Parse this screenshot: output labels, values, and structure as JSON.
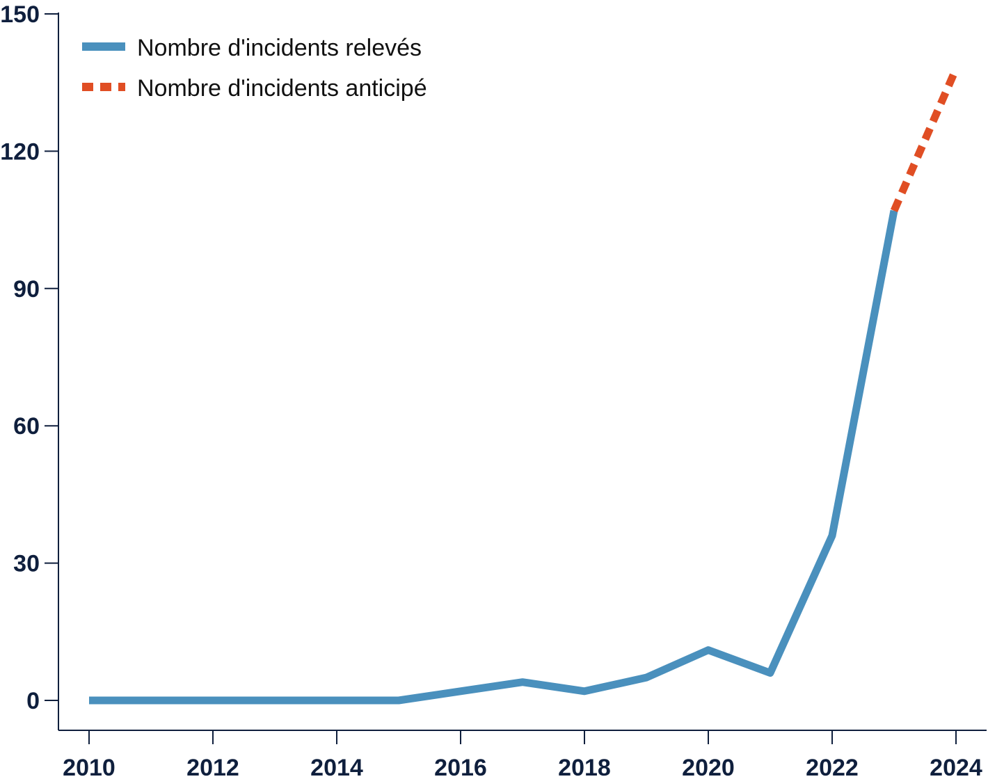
{
  "chart_data": {
    "type": "line",
    "title": "",
    "xlabel": "",
    "ylabel": "",
    "xlim": [
      2010,
      2024
    ],
    "ylim": [
      -6.5,
      150
    ],
    "x_ticks": [
      2010,
      2012,
      2014,
      2016,
      2018,
      2020,
      2022,
      2024
    ],
    "x_tick_labels": [
      "2010",
      "2012",
      "2014",
      "2016",
      "2018",
      "2020",
      "2022",
      "2024"
    ],
    "y_ticks": [
      0,
      30,
      60,
      90,
      120,
      150
    ],
    "y_tick_labels": [
      "0",
      "30",
      "60",
      "90",
      "120",
      "150"
    ],
    "grid": false,
    "legend_position": "top-left",
    "series": [
      {
        "name": "Nombre d'incidents relevés",
        "style": "solid",
        "color": "#4a90bd",
        "x": [
          2010,
          2011,
          2012,
          2013,
          2014,
          2015,
          2016,
          2017,
          2018,
          2019,
          2020,
          2021,
          2022,
          2023
        ],
        "y": [
          0,
          0,
          0,
          0,
          0,
          0,
          2,
          4,
          2,
          5,
          11,
          6,
          36,
          107
        ]
      },
      {
        "name": "Nombre d'incidents anticipé",
        "style": "dashed",
        "color": "#e04e24",
        "x": [
          2023,
          2024
        ],
        "y": [
          107,
          138
        ]
      }
    ]
  },
  "colors": {
    "axis": "#0f1f3d",
    "recorded": "#4a90bd",
    "forecast": "#e04e24"
  }
}
